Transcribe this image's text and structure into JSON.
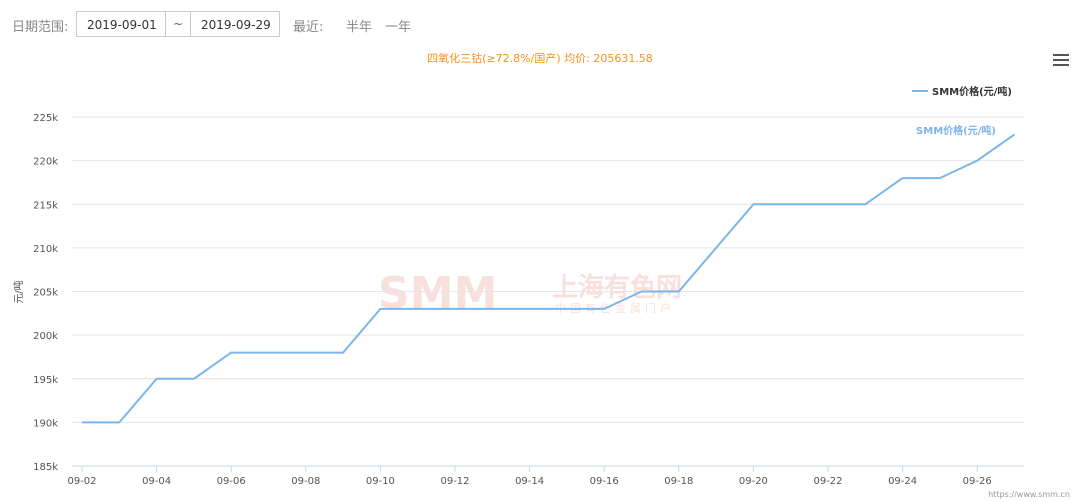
{
  "toolbar": {
    "date_range_label": "日期范围:",
    "start_date": "2019-09-01",
    "separator": "~",
    "end_date": "2019-09-29",
    "recent_label": "最近:",
    "half_year": "半年",
    "one_year": "一年"
  },
  "menu_icon": "hamburger-menu-icon",
  "watermark": {
    "brand": "SMM",
    "cn_name": "上海有色网",
    "sub": "中国有色金属门户"
  },
  "credit": "https://www.smm.cn",
  "chart_data": {
    "type": "line",
    "title": "四氧化三钴(≥72.8%/国产) 均价: 205631.58",
    "ylabel": "元/吨",
    "xlabel": "",
    "ylim": [
      185000,
      225000
    ],
    "yticks": [
      "185k",
      "190k",
      "195k",
      "200k",
      "205k",
      "210k",
      "215k",
      "220k",
      "225k"
    ],
    "x": [
      "09-02",
      "09-03",
      "09-04",
      "09-05",
      "09-06",
      "09-07",
      "09-08",
      "09-09",
      "09-10",
      "09-11",
      "09-12",
      "09-13",
      "09-14",
      "09-15",
      "09-16",
      "09-17",
      "09-18",
      "09-19",
      "09-20",
      "09-21",
      "09-22",
      "09-23",
      "09-24",
      "09-25",
      "09-26",
      "09-27"
    ],
    "xtick_labels": [
      "09-02",
      "09-04",
      "09-06",
      "09-08",
      "09-10",
      "09-12",
      "09-14",
      "09-16",
      "09-18",
      "09-20",
      "09-22",
      "09-24",
      "09-26"
    ],
    "series": [
      {
        "name": "SMM价格(元/吨)",
        "color": "#7cb5ec",
        "values": [
          190000,
          190000,
          195000,
          195000,
          198000,
          198000,
          198000,
          198000,
          203000,
          203000,
          203000,
          203000,
          203000,
          203000,
          203000,
          205000,
          205000,
          210000,
          215000,
          215000,
          215000,
          215000,
          218000,
          218000,
          220000,
          223000
        ]
      }
    ],
    "legend_position": "top-right",
    "grid": true
  }
}
